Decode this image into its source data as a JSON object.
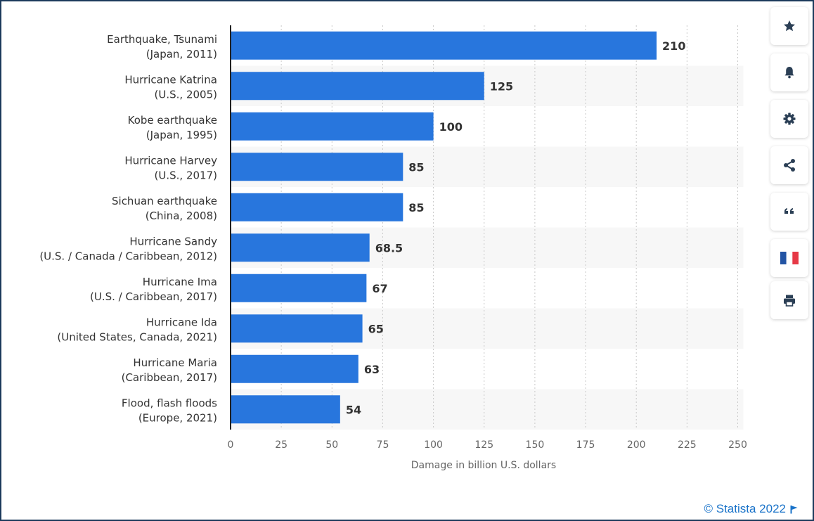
{
  "chart_data": {
    "type": "bar",
    "orientation": "horizontal",
    "categories": [
      [
        "Earthquake, Tsunami",
        "(Japan, 2011)"
      ],
      [
        "Hurricane Katrina",
        "(U.S., 2005)"
      ],
      [
        "Kobe earthquake",
        "(Japan, 1995)"
      ],
      [
        "Hurricane Harvey",
        "(U.S., 2017)"
      ],
      [
        "Sichuan earthquake",
        "(China, 2008)"
      ],
      [
        "Hurricane Sandy",
        "(U.S. / Canada / Caribbean, 2012)"
      ],
      [
        "Hurricane Ima",
        "(U.S. / Caribbean, 2017)"
      ],
      [
        "Hurricane Ida",
        "(United States, Canada, 2021)"
      ],
      [
        "Hurricane Maria",
        "(Caribbean, 2017)"
      ],
      [
        "Flood, flash floods",
        "(Europe, 2021)"
      ]
    ],
    "values": [
      210,
      125,
      100,
      85,
      85,
      68.5,
      67,
      65,
      63,
      54
    ],
    "value_labels": [
      "210",
      "125",
      "100",
      "85",
      "85",
      "68.5",
      "67",
      "65",
      "63",
      "54"
    ],
    "xlabel": "Damage in billion U.S. dollars",
    "xlim": [
      0,
      250
    ],
    "xticks": [
      "0",
      "25",
      "50",
      "75",
      "100",
      "125",
      "150",
      "175",
      "200",
      "225",
      "250"
    ],
    "bar_color": "#2876dd",
    "band_color": "#f7f7f7",
    "grid": "vertical dotted"
  },
  "toolbar": [
    {
      "name": "star-icon"
    },
    {
      "name": "bell-icon"
    },
    {
      "name": "gear-icon"
    },
    {
      "name": "share-icon"
    },
    {
      "name": "quote-icon"
    },
    {
      "name": "flag-fr-icon"
    },
    {
      "name": "print-icon"
    }
  ],
  "credit": {
    "text": "© Statista 2022",
    "color": "#1a73c9"
  }
}
